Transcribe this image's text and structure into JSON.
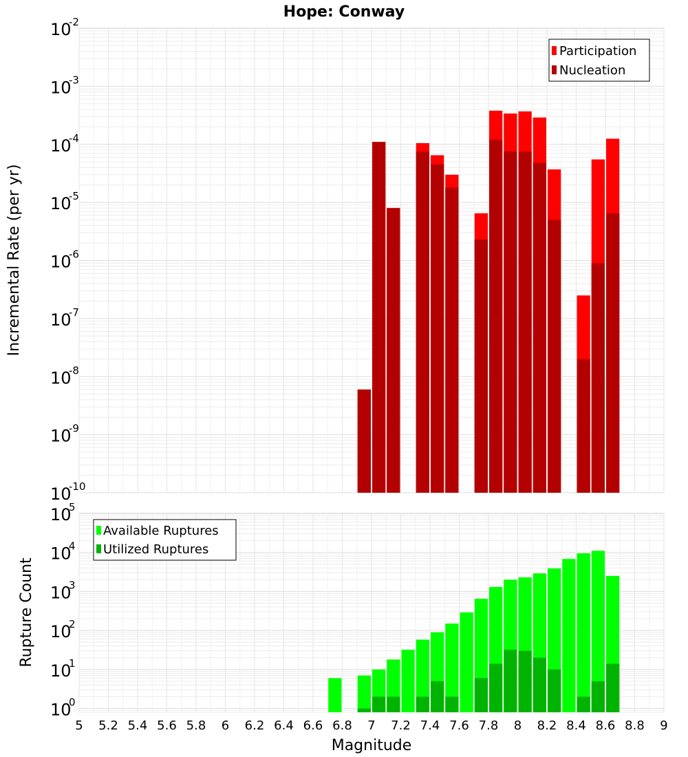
{
  "chart_data": [
    {
      "type": "bar",
      "title": "Hope: Conway",
      "xlabel": "",
      "ylabel": "Incremental Rate (per yr)",
      "y_scale": "log",
      "ylim": [
        1e-10,
        0.01
      ],
      "xlim": [
        5,
        9
      ],
      "bar_width": 0.1,
      "grid": true,
      "legend_position": "top-right",
      "colors": {
        "Participation": "#ff0000",
        "Nucleation": "#b30000"
      },
      "series": [
        {
          "name": "Participation",
          "x": [
            6.95,
            7.05,
            7.15,
            7.35,
            7.45,
            7.55,
            7.75,
            7.85,
            7.95,
            8.05,
            8.15,
            8.25,
            8.45,
            8.55,
            8.65
          ],
          "values": [
            6e-09,
            0.00011,
            8e-06,
            0.000105,
            6.5e-05,
            3e-05,
            6.5e-06,
            0.00038,
            0.00034,
            0.00037,
            0.00029,
            3.7e-05,
            2.5e-07,
            5.5e-05,
            0.000125
          ]
        },
        {
          "name": "Nucleation",
          "x": [
            6.95,
            7.05,
            7.15,
            7.35,
            7.45,
            7.55,
            7.75,
            7.85,
            7.95,
            8.05,
            8.15,
            8.25,
            8.45,
            8.55,
            8.65
          ],
          "values": [
            6e-09,
            0.00011,
            8e-06,
            7.5e-05,
            4.5e-05,
            1.8e-05,
            2.3e-06,
            0.00012,
            7.5e-05,
            7.5e-05,
            4.8e-05,
            5e-06,
            2e-08,
            9e-07,
            6.5e-06
          ]
        }
      ],
      "y_ticks": [
        {
          "base": "10",
          "exp": "-2",
          "value": 0.01
        },
        {
          "base": "10",
          "exp": "-3",
          "value": 0.001
        },
        {
          "base": "10",
          "exp": "-4",
          "value": 0.0001
        },
        {
          "base": "10",
          "exp": "-5",
          "value": 1e-05
        },
        {
          "base": "10",
          "exp": "-6",
          "value": 1e-06
        },
        {
          "base": "10",
          "exp": "-7",
          "value": 1e-07
        },
        {
          "base": "10",
          "exp": "-8",
          "value": 1e-08
        },
        {
          "base": "10",
          "exp": "-9",
          "value": 1e-09
        },
        {
          "base": "10",
          "exp": "-10",
          "value": 1e-10
        }
      ]
    },
    {
      "type": "bar",
      "title": "",
      "xlabel": "Magnitude",
      "ylabel": "Rupture Count",
      "y_scale": "log",
      "ylim": [
        0.8,
        100000.0
      ],
      "xlim": [
        5,
        9
      ],
      "bar_width": 0.1,
      "grid": true,
      "legend_position": "top-left",
      "colors": {
        "Available Ruptures": "#00ff00",
        "Utilized Ruptures": "#00b300"
      },
      "series": [
        {
          "name": "Available Ruptures",
          "x": [
            6.75,
            6.95,
            7.05,
            7.15,
            7.25,
            7.35,
            7.45,
            7.55,
            7.65,
            7.75,
            7.85,
            7.95,
            8.05,
            8.15,
            8.25,
            8.35,
            8.45,
            8.55,
            8.65
          ],
          "values": [
            6,
            7,
            10,
            18,
            32,
            58,
            90,
            150,
            290,
            650,
            1300,
            2000,
            2300,
            2900,
            3900,
            6800,
            9500,
            11000,
            2500
          ]
        },
        {
          "name": "Utilized Ruptures",
          "x": [
            6.95,
            7.05,
            7.15,
            7.35,
            7.45,
            7.55,
            7.75,
            7.85,
            7.95,
            8.05,
            8.15,
            8.25,
            8.45,
            8.55,
            8.65
          ],
          "values": [
            1,
            2,
            2,
            2,
            5,
            2,
            6,
            14,
            32,
            30,
            20,
            10,
            2,
            5,
            14
          ]
        }
      ],
      "x_ticks": [
        "5",
        "5.2",
        "5.4",
        "5.6",
        "5.8",
        "6",
        "6.2",
        "6.4",
        "6.6",
        "6.8",
        "7",
        "7.2",
        "7.4",
        "7.6",
        "7.8",
        "8",
        "8.2",
        "8.4",
        "8.6",
        "8.8",
        "9"
      ],
      "y_ticks": [
        {
          "base": "10",
          "exp": "5",
          "value": 100000.0
        },
        {
          "base": "10",
          "exp": "4",
          "value": 10000.0
        },
        {
          "base": "10",
          "exp": "3",
          "value": 1000.0
        },
        {
          "base": "10",
          "exp": "2",
          "value": 100.0
        },
        {
          "base": "10",
          "exp": "1",
          "value": 10.0
        },
        {
          "base": "10",
          "exp": "0",
          "value": 1
        }
      ]
    }
  ]
}
